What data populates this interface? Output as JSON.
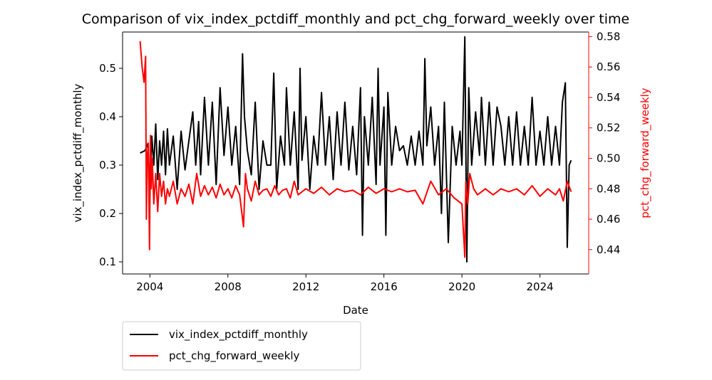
{
  "chart_data": {
    "type": "line",
    "title": "Comparison of vix_index_pctdiff_monthly and pct_chg_forward_weekly over time",
    "xlabel": "Date",
    "xlim": [
      2002.6,
      2026.5
    ],
    "x_ticks": [
      2004,
      2008,
      2012,
      2016,
      2020,
      2024
    ],
    "left_axis": {
      "label": "vix_index_pctdiff_monthly",
      "ylim": [
        0.075,
        0.575
      ],
      "ticks": [
        0.1,
        0.2,
        0.3,
        0.4,
        0.5
      ],
      "color": "#000000"
    },
    "right_axis": {
      "label": "pct_chg_forward_weekly",
      "ylim": [
        0.424,
        0.583
      ],
      "ticks": [
        0.44,
        0.46,
        0.48,
        0.5,
        0.52,
        0.54,
        0.56,
        0.58
      ],
      "color": "#ff0000"
    },
    "legend": {
      "placement": "below-left"
    },
    "series": [
      {
        "name": "vix_index_pctdiff_monthly",
        "axis": "left",
        "color": "#000000",
        "x": [
          2003.5,
          2003.75,
          2003.9,
          2004.0,
          2004.1,
          2004.2,
          2004.3,
          2004.4,
          2004.5,
          2004.6,
          2004.7,
          2004.8,
          2004.9,
          2005.0,
          2005.2,
          2005.4,
          2005.6,
          2005.8,
          2006.0,
          2006.2,
          2006.35,
          2006.5,
          2006.6,
          2006.8,
          2007.0,
          2007.2,
          2007.4,
          2007.6,
          2007.8,
          2008.0,
          2008.2,
          2008.4,
          2008.6,
          2008.75,
          2008.85,
          2009.0,
          2009.2,
          2009.4,
          2009.6,
          2009.8,
          2010.0,
          2010.2,
          2010.35,
          2010.5,
          2010.7,
          2010.9,
          2011.0,
          2011.2,
          2011.4,
          2011.6,
          2011.7,
          2011.8,
          2012.0,
          2012.2,
          2012.4,
          2012.6,
          2012.8,
          2013.0,
          2013.2,
          2013.4,
          2013.6,
          2013.8,
          2014.0,
          2014.2,
          2014.4,
          2014.6,
          2014.8,
          2014.9,
          2015.0,
          2015.2,
          2015.4,
          2015.6,
          2015.7,
          2015.8,
          2016.0,
          2016.1,
          2016.2,
          2016.4,
          2016.6,
          2016.8,
          2017.0,
          2017.2,
          2017.4,
          2017.6,
          2017.8,
          2018.0,
          2018.1,
          2018.2,
          2018.4,
          2018.6,
          2018.8,
          2018.95,
          2019.1,
          2019.3,
          2019.5,
          2019.7,
          2019.9,
          2020.0,
          2020.15,
          2020.25,
          2020.35,
          2020.5,
          2020.7,
          2020.9,
          2021.0,
          2021.2,
          2021.4,
          2021.6,
          2021.8,
          2022.0,
          2022.2,
          2022.4,
          2022.6,
          2022.8,
          2023.0,
          2023.2,
          2023.4,
          2023.6,
          2023.8,
          2024.0,
          2024.2,
          2024.4,
          2024.6,
          2024.8,
          2025.0,
          2025.15,
          2025.3,
          2025.4,
          2025.5,
          2025.6
        ],
        "y": [
          0.325,
          0.33,
          0.345,
          0.24,
          0.36,
          0.3,
          0.385,
          0.27,
          0.35,
          0.3,
          0.37,
          0.28,
          0.375,
          0.3,
          0.36,
          0.25,
          0.37,
          0.29,
          0.35,
          0.41,
          0.3,
          0.39,
          0.28,
          0.44,
          0.3,
          0.43,
          0.26,
          0.46,
          0.32,
          0.42,
          0.3,
          0.38,
          0.26,
          0.53,
          0.4,
          0.33,
          0.28,
          0.43,
          0.25,
          0.35,
          0.3,
          0.3,
          0.49,
          0.25,
          0.36,
          0.3,
          0.46,
          0.3,
          0.41,
          0.25,
          0.5,
          0.31,
          0.4,
          0.25,
          0.36,
          0.3,
          0.45,
          0.3,
          0.4,
          0.27,
          0.41,
          0.3,
          0.43,
          0.29,
          0.38,
          0.28,
          0.46,
          0.155,
          0.4,
          0.3,
          0.44,
          0.26,
          0.5,
          0.3,
          0.42,
          0.155,
          0.45,
          0.3,
          0.38,
          0.33,
          0.34,
          0.3,
          0.36,
          0.3,
          0.37,
          0.3,
          0.52,
          0.34,
          0.42,
          0.3,
          0.38,
          0.2,
          0.43,
          0.14,
          0.38,
          0.3,
          0.37,
          0.3,
          0.565,
          0.1,
          0.46,
          0.3,
          0.41,
          0.32,
          0.44,
          0.3,
          0.43,
          0.3,
          0.42,
          0.38,
          0.3,
          0.4,
          0.3,
          0.41,
          0.3,
          0.38,
          0.3,
          0.44,
          0.3,
          0.37,
          0.3,
          0.4,
          0.3,
          0.38,
          0.3,
          0.43,
          0.47,
          0.13,
          0.3,
          0.31
        ]
      },
      {
        "name": "pct_chg_forward_weekly",
        "axis": "right",
        "color": "#ff0000",
        "x": [
          2003.5,
          2003.6,
          2003.7,
          2003.78,
          2003.82,
          2003.86,
          2003.92,
          2003.98,
          2004.03,
          2004.07,
          2004.12,
          2004.2,
          2004.3,
          2004.4,
          2004.5,
          2004.6,
          2004.7,
          2004.8,
          2004.9,
          2005.0,
          2005.2,
          2005.4,
          2005.6,
          2005.8,
          2006.0,
          2006.2,
          2006.4,
          2006.6,
          2006.8,
          2007.0,
          2007.2,
          2007.4,
          2007.6,
          2007.8,
          2008.0,
          2008.2,
          2008.4,
          2008.6,
          2008.8,
          2008.9,
          2009.0,
          2009.2,
          2009.4,
          2009.6,
          2009.8,
          2010.0,
          2010.2,
          2010.4,
          2010.6,
          2010.8,
          2011.0,
          2011.2,
          2011.4,
          2011.6,
          2011.8,
          2012.0,
          2012.4,
          2012.8,
          2013.2,
          2013.6,
          2014.0,
          2014.4,
          2014.8,
          2015.2,
          2015.6,
          2016.0,
          2016.4,
          2016.8,
          2017.2,
          2017.6,
          2018.0,
          2018.4,
          2018.8,
          2019.2,
          2019.6,
          2020.0,
          2020.15,
          2020.2,
          2020.3,
          2020.4,
          2020.6,
          2020.8,
          2021.2,
          2021.6,
          2022.0,
          2022.4,
          2022.8,
          2023.2,
          2023.6,
          2024.0,
          2024.4,
          2024.8,
          2025.0,
          2025.2,
          2025.4,
          2025.6
        ],
        "y": [
          0.577,
          0.56,
          0.55,
          0.567,
          0.46,
          0.5,
          0.51,
          0.44,
          0.515,
          0.48,
          0.5,
          0.47,
          0.49,
          0.465,
          0.49,
          0.475,
          0.485,
          0.47,
          0.48,
          0.475,
          0.485,
          0.47,
          0.48,
          0.475,
          0.483,
          0.47,
          0.49,
          0.475,
          0.482,
          0.476,
          0.481,
          0.474,
          0.483,
          0.476,
          0.48,
          0.474,
          0.482,
          0.476,
          0.455,
          0.49,
          0.48,
          0.472,
          0.485,
          0.476,
          0.479,
          0.48,
          0.475,
          0.482,
          0.476,
          0.479,
          0.48,
          0.474,
          0.485,
          0.476,
          0.478,
          0.48,
          0.477,
          0.481,
          0.476,
          0.48,
          0.478,
          0.479,
          0.476,
          0.481,
          0.477,
          0.48,
          0.478,
          0.48,
          0.478,
          0.479,
          0.47,
          0.485,
          0.476,
          0.48,
          0.474,
          0.47,
          0.435,
          0.485,
          0.47,
          0.49,
          0.48,
          0.476,
          0.48,
          0.476,
          0.48,
          0.478,
          0.48,
          0.476,
          0.482,
          0.475,
          0.48,
          0.476,
          0.48,
          0.472,
          0.485,
          0.478
        ]
      }
    ]
  }
}
